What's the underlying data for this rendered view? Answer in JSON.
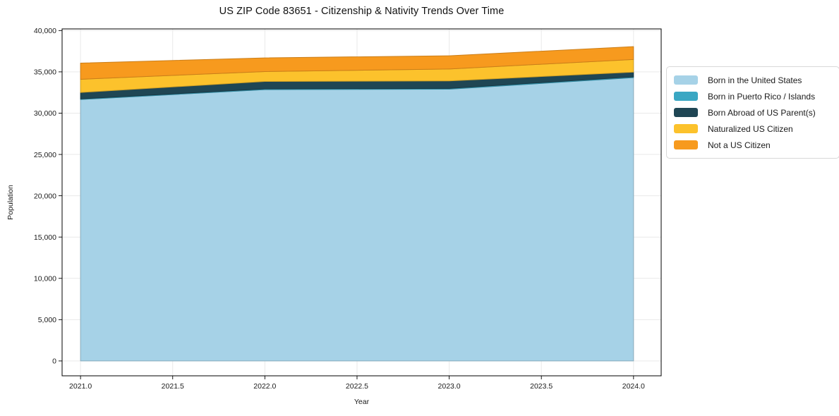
{
  "chart_data": {
    "type": "area",
    "stacked": true,
    "title": "US ZIP Code 83651 - Citizenship & Nativity Trends Over Time",
    "xlabel": "Year",
    "ylabel": "Population",
    "x": [
      2021,
      2022,
      2023,
      2024
    ],
    "series": [
      {
        "name": "Born in the United States",
        "color": "#a6d2e7",
        "values": [
          31650,
          32850,
          32900,
          34300
        ]
      },
      {
        "name": "Born in Puerto Rico / Islands",
        "color": "#3aa7c3",
        "values": [
          80,
          90,
          100,
          100
        ]
      },
      {
        "name": "Born Abroad of US Parent(s)",
        "color": "#1f4654",
        "values": [
          780,
          900,
          900,
          570
        ]
      },
      {
        "name": "Naturalized US Citizen",
        "color": "#fcc22c",
        "values": [
          1590,
          1200,
          1450,
          1530
        ]
      },
      {
        "name": "Not a US Citizen",
        "color": "#f79a1e",
        "values": [
          1960,
          1650,
          1600,
          1560
        ]
      }
    ],
    "totals": [
      36060,
      36690,
      36950,
      38060
    ],
    "x_ticks": [
      {
        "value": 2021.0,
        "label": "2021.0"
      },
      {
        "value": 2021.5,
        "label": "2021.5"
      },
      {
        "value": 2022.0,
        "label": "2022.0"
      },
      {
        "value": 2022.5,
        "label": "2022.5"
      },
      {
        "value": 2023.0,
        "label": "2023.0"
      },
      {
        "value": 2023.5,
        "label": "2023.5"
      },
      {
        "value": 2024.0,
        "label": "2024.0"
      }
    ],
    "y_ticks": [
      {
        "value": 0,
        "label": "0"
      },
      {
        "value": 5000,
        "label": "5,000"
      },
      {
        "value": 10000,
        "label": "10,000"
      },
      {
        "value": 15000,
        "label": "15,000"
      },
      {
        "value": 20000,
        "label": "20,000"
      },
      {
        "value": 25000,
        "label": "25,000"
      },
      {
        "value": 30000,
        "label": "30,000"
      },
      {
        "value": 35000,
        "label": "35,000"
      },
      {
        "value": 40000,
        "label": "40,000"
      }
    ],
    "xlim": [
      2020.9,
      2024.15
    ],
    "ylim": [
      -1800,
      40200
    ],
    "grid": true,
    "grid_color": "#e9e9e9",
    "spine_color": "#000000",
    "background": "#ffffff",
    "legend_position": "right"
  }
}
